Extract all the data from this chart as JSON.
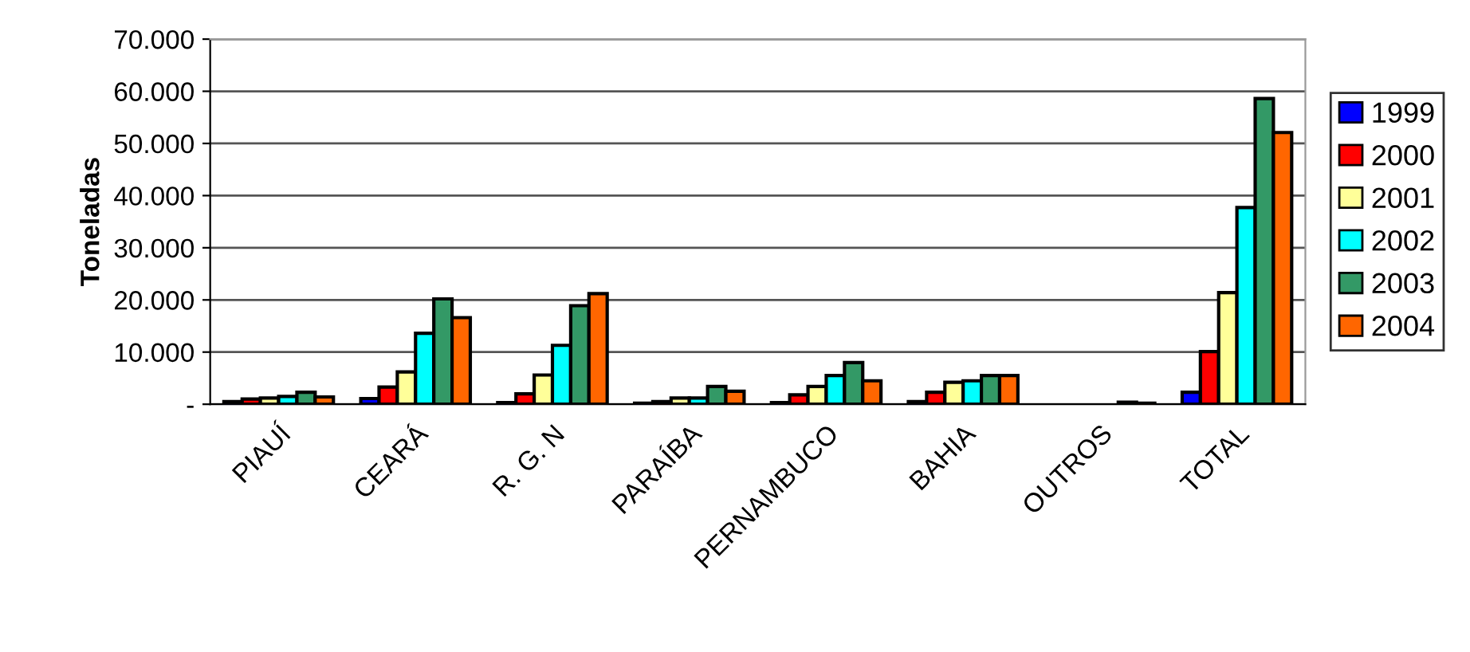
{
  "chart_data": {
    "type": "bar",
    "ylabel": "Toneladas",
    "categories": [
      "PIAUÍ",
      "CEARÁ",
      "R. G. N",
      "PARAÍBA",
      "PERNAMBUCO",
      "BAHIA",
      "OUTROS",
      "TOTAL"
    ],
    "series": [
      {
        "name": "1999",
        "color": "#0000ff",
        "values": [
          500,
          1100,
          300,
          200,
          300,
          500,
          null,
          2300
        ]
      },
      {
        "name": "2000",
        "color": "#ff0000",
        "values": [
          1000,
          3300,
          2000,
          500,
          1800,
          2300,
          null,
          10100
        ]
      },
      {
        "name": "2001",
        "color": "#ffff99",
        "values": [
          1200,
          6200,
          5600,
          1200,
          3400,
          4200,
          null,
          21400
        ]
      },
      {
        "name": "2002",
        "color": "#00ffff",
        "values": [
          1500,
          13600,
          11300,
          1200,
          5500,
          4500,
          null,
          37700
        ]
      },
      {
        "name": "2003",
        "color": "#339966",
        "values": [
          2300,
          20200,
          18900,
          3400,
          8000,
          5500,
          400,
          58600
        ]
      },
      {
        "name": "2004",
        "color": "#ff6600",
        "values": [
          1400,
          16600,
          21200,
          2500,
          4500,
          5500,
          200,
          52100
        ]
      }
    ],
    "ylim": [
      0,
      70000
    ],
    "yticks": [
      {
        "value": 0,
        "label": "-"
      },
      {
        "value": 10000,
        "label": "10.000"
      },
      {
        "value": 20000,
        "label": "20.000"
      },
      {
        "value": 30000,
        "label": "30.000"
      },
      {
        "value": 40000,
        "label": "40.000"
      },
      {
        "value": 50000,
        "label": "50.000"
      },
      {
        "value": 60000,
        "label": "60.000"
      },
      {
        "value": 70000,
        "label": "70.000"
      }
    ],
    "grid": "y",
    "legend": "right"
  }
}
